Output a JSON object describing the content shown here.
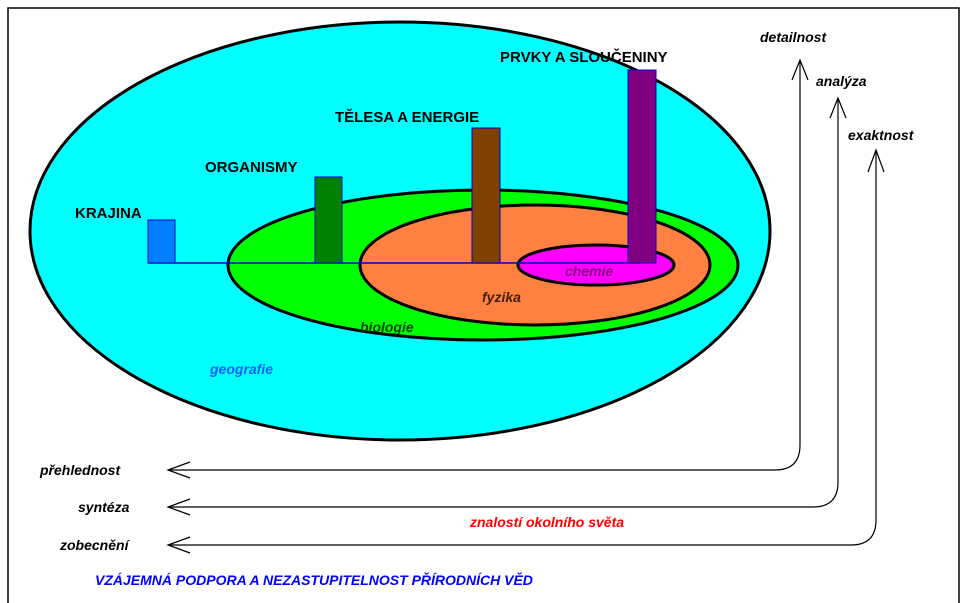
{
  "levels": [
    {
      "label": "KRAJINA",
      "field": "geografie"
    },
    {
      "label": "ORGANISMY",
      "field": "biologie"
    },
    {
      "label": "TĚLESA A ENERGIE",
      "field": "fyzika"
    },
    {
      "label": "PRVKY A SLOUČENINY",
      "field": "chemie"
    }
  ],
  "arrows": [
    {
      "top": "detailnost",
      "left": "přehlednost"
    },
    {
      "top": "analýza",
      "left": "syntéza"
    },
    {
      "top": "exaktnost",
      "left": "zobecnění"
    }
  ],
  "note": "znalostí okolního světa",
  "caption": "VZÁJEMNÁ PODPORA A NEZASTUPITELNOST PŘÍRODNÍCH VĚD"
}
